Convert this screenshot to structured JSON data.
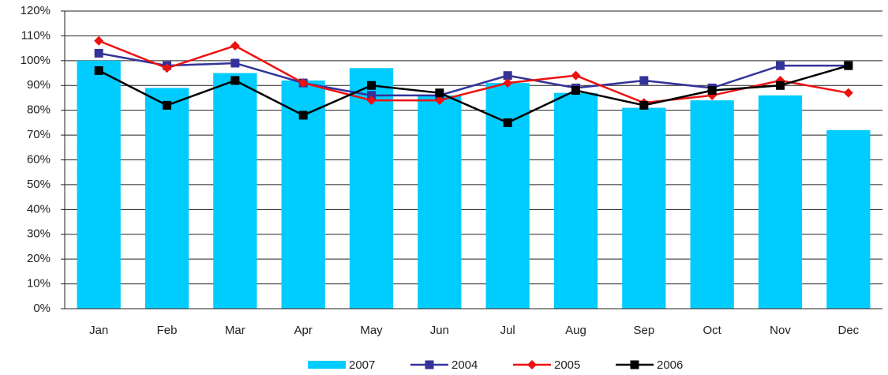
{
  "chart_data": {
    "type": "bar",
    "categories": [
      "Jan",
      "Feb",
      "Mar",
      "Apr",
      "May",
      "Jun",
      "Jul",
      "Aug",
      "Sep",
      "Oct",
      "Nov",
      "Dec"
    ],
    "series": [
      {
        "name": "2007",
        "type": "bar",
        "color": "#00ccff",
        "values": [
          100,
          89,
          95,
          92,
          97,
          86,
          91,
          87,
          81,
          84,
          86,
          72
        ]
      },
      {
        "name": "2004",
        "type": "line",
        "marker": "square",
        "color": "#333399",
        "values": [
          103,
          98,
          99,
          91,
          86,
          86,
          94,
          89,
          92,
          89,
          98,
          98
        ]
      },
      {
        "name": "2005",
        "type": "line",
        "marker": "diamond",
        "color": "#ee1111",
        "values": [
          108,
          97,
          106,
          91,
          84,
          84,
          91,
          94,
          83,
          86,
          92,
          87
        ]
      },
      {
        "name": "2006",
        "type": "line",
        "marker": "square",
        "color": "#000000",
        "values": [
          96,
          82,
          92,
          78,
          90,
          87,
          75,
          88,
          82,
          88,
          90,
          98
        ]
      }
    ],
    "ylim": [
      0,
      120
    ],
    "yticks": [
      {
        "value": 0,
        "label": "0%"
      },
      {
        "value": 10,
        "label": "10%"
      },
      {
        "value": 20,
        "label": "20%"
      },
      {
        "value": 30,
        "label": "30%"
      },
      {
        "value": 40,
        "label": "40%"
      },
      {
        "value": 50,
        "label": "50%"
      },
      {
        "value": 60,
        "label": "60%"
      },
      {
        "value": 70,
        "label": "70%"
      },
      {
        "value": 80,
        "label": "80%"
      },
      {
        "value": 90,
        "label": "90%"
      },
      {
        "value": 100,
        "label": "100%"
      },
      {
        "value": 110,
        "label": "110%"
      },
      {
        "value": 120,
        "label": "120%"
      }
    ],
    "grid": true,
    "legend": "bottom"
  }
}
